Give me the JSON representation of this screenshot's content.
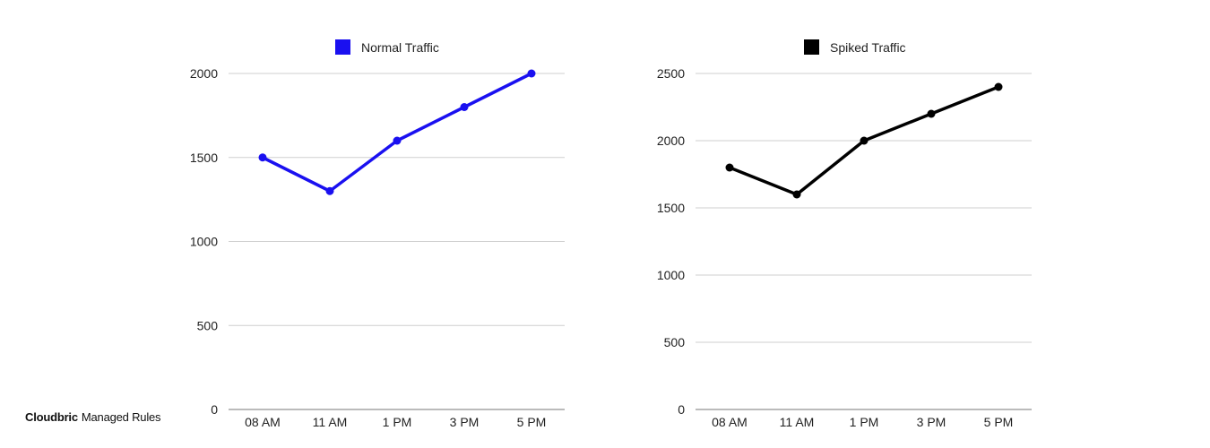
{
  "brand": {
    "name": "Cloudbric",
    "product": "Managed Rules"
  },
  "chart_data": [
    {
      "type": "line",
      "categories": [
        "08 AM",
        "11 AM",
        "1 PM",
        "3 PM",
        "5 PM"
      ],
      "series": [
        {
          "name": "Normal Traffic",
          "values": [
            1500,
            1300,
            1600,
            1800,
            2000
          ],
          "color": "#1a10f0"
        }
      ],
      "y_ticks": [
        0,
        500,
        1000,
        1500,
        2000
      ],
      "ylim": [
        0,
        2000
      ],
      "grid": true,
      "legend": "top"
    },
    {
      "type": "line",
      "categories": [
        "08 AM",
        "11 AM",
        "1 PM",
        "3 PM",
        "5 PM"
      ],
      "series": [
        {
          "name": "Spiked Traffic",
          "values": [
            1800,
            1600,
            2000,
            2200,
            2400
          ],
          "color": "#000000"
        }
      ],
      "y_ticks": [
        0,
        500,
        1000,
        1500,
        2000,
        2500
      ],
      "ylim": [
        0,
        2500
      ],
      "grid": true,
      "legend": "top"
    }
  ]
}
